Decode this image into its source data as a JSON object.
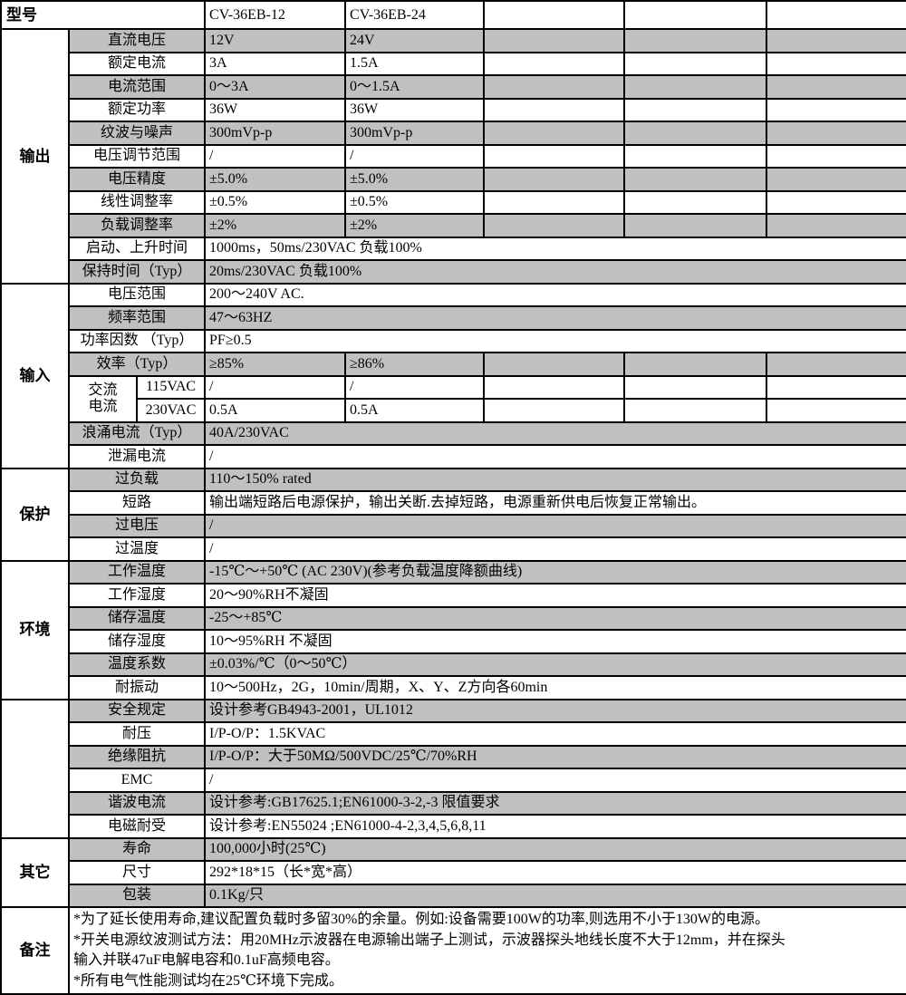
{
  "colors": {
    "row_shade": "#c0c0c0",
    "border": "#000000",
    "background": "#ffffff"
  },
  "table": {
    "model_row": {
      "label": "型号",
      "values": [
        "CV-36EB-12",
        "CV-36EB-24",
        "",
        "",
        ""
      ]
    },
    "sections": [
      {
        "name": "输出",
        "rows": [
          {
            "label": "直流电压",
            "shaded": true,
            "cells": [
              "12V",
              "24V",
              "",
              "",
              ""
            ]
          },
          {
            "label": "额定电流",
            "shaded": false,
            "cells": [
              "3A",
              "1.5A",
              "",
              "",
              ""
            ]
          },
          {
            "label": "电流范围",
            "shaded": true,
            "cells": [
              "0～3A",
              "0～1.5A",
              "",
              "",
              ""
            ]
          },
          {
            "label": "额定功率",
            "shaded": false,
            "cells": [
              "36W",
              "36W",
              "",
              "",
              ""
            ]
          },
          {
            "label": "纹波与噪声",
            "shaded": true,
            "cells": [
              "300mVp-p",
              "300mVp-p",
              "",
              "",
              ""
            ]
          },
          {
            "label": "电压调节范围",
            "shaded": false,
            "cells": [
              "/",
              "/",
              "",
              "",
              ""
            ]
          },
          {
            "label": "电压精度",
            "shaded": true,
            "cells": [
              "±5.0%",
              "±5.0%",
              "",
              "",
              ""
            ]
          },
          {
            "label": "线性调整率",
            "shaded": false,
            "cells": [
              "±0.5%",
              "±0.5%",
              "",
              "",
              ""
            ]
          },
          {
            "label": "负载调整率",
            "shaded": true,
            "cells": [
              "±2%",
              "±2%",
              "",
              "",
              ""
            ]
          },
          {
            "label": "启动、上升时间",
            "shaded": false,
            "span": "1000ms，50ms/230VAC 负载100%"
          },
          {
            "label": "保持时间（Typ）",
            "shaded": true,
            "span": "20ms/230VAC 负载100%"
          }
        ]
      },
      {
        "name": "输入",
        "rows": [
          {
            "label": "电压范围",
            "shaded": false,
            "span": "200～240V AC."
          },
          {
            "label": "频率范围",
            "shaded": true,
            "span": "47～63HZ"
          },
          {
            "label": "功率因数 （Typ）",
            "shaded": false,
            "span": "PF≥0.5"
          },
          {
            "label": "效率（Typ）",
            "shaded": true,
            "cells": [
              "≥85%",
              "≥86%",
              "",
              "",
              ""
            ]
          },
          {
            "label": "交流\n电流",
            "label_rowspan": 2,
            "sublabel": "115VAC",
            "shaded": false,
            "cells": [
              "/",
              "/",
              "",
              "",
              ""
            ]
          },
          {
            "sublabel": "230VAC",
            "shaded": false,
            "cells": [
              "0.5A",
              "0.5A",
              "",
              "",
              ""
            ]
          },
          {
            "label": "浪涌电流（Typ）",
            "shaded": true,
            "span": "40A/230VAC"
          },
          {
            "label": "泄漏电流",
            "shaded": false,
            "span": "/"
          }
        ]
      },
      {
        "name": "保护",
        "rows": [
          {
            "label": "过负载",
            "shaded": true,
            "span": "110～150% rated"
          },
          {
            "label": "短路",
            "shaded": false,
            "span": "输出端短路后电源保护，输出关断.去掉短路，电源重新供电后恢复正常输出。"
          },
          {
            "label": "过电压",
            "shaded": true,
            "span": "/"
          },
          {
            "label": "过温度",
            "shaded": false,
            "span": "/"
          }
        ]
      },
      {
        "name": "环境",
        "rows": [
          {
            "label": "工作温度",
            "shaded": true,
            "span": "-15℃～+50℃ (AC 230V)(参考负载温度降额曲线)"
          },
          {
            "label": "工作湿度",
            "shaded": false,
            "span": "20～90%RH不凝固"
          },
          {
            "label": "储存温度",
            "shaded": true,
            "span": "-25～+85℃"
          },
          {
            "label": "储存湿度",
            "shaded": false,
            "span": "10～95%RH 不凝固"
          },
          {
            "label": "温度系数",
            "shaded": true,
            "span": "±0.03%/℃（0～50℃）"
          },
          {
            "label": "耐振动",
            "shaded": false,
            "span": "10～500Hz，2G，10min/周期，X、Y、Z方向各60min"
          }
        ]
      },
      {
        "name": "",
        "rows": [
          {
            "label": "安全规定",
            "shaded": true,
            "span": "设计参考GB4943-2001，UL1012"
          },
          {
            "label": "耐压",
            "shaded": false,
            "span": "I/P-O/P：1.5KVAC"
          },
          {
            "label": "绝缘阻抗",
            "shaded": true,
            "span": "I/P-O/P：大于50MΩ/500VDC/25℃/70%RH"
          },
          {
            "label": "EMC",
            "shaded": false,
            "span": "/"
          },
          {
            "label": "谐波电流",
            "shaded": true,
            "span": "设计参考:GB17625.1;EN61000-3-2,-3 限值要求"
          },
          {
            "label": "电磁耐受",
            "shaded": false,
            "span": "设计参考:EN55024 ;EN61000-4-2,3,4,5,6,8,11"
          }
        ]
      },
      {
        "name": "其它",
        "rows": [
          {
            "label": "寿命",
            "shaded": true,
            "span": "100,000小时(25℃)"
          },
          {
            "label": "尺寸",
            "shaded": false,
            "span": "292*18*15（长*宽*高）"
          },
          {
            "label": "包装",
            "shaded": true,
            "span": "0.1Kg/只"
          }
        ]
      },
      {
        "name": "备注",
        "notes": [
          "*为了延长使用寿命,建议配置负载时多留30%的余量。例如:设备需要100W的功率,则选用不小于130W的电源。",
          "*开关电源纹波测试方法：用20MHz示波器在电源输出端子上测试，示波器探头地线长度不大于12mm，并在探头",
          "输入并联47uF电解电容和0.1uF高频电容。",
          "*所有电气性能测试均在25℃环境下完成。"
        ]
      }
    ]
  }
}
